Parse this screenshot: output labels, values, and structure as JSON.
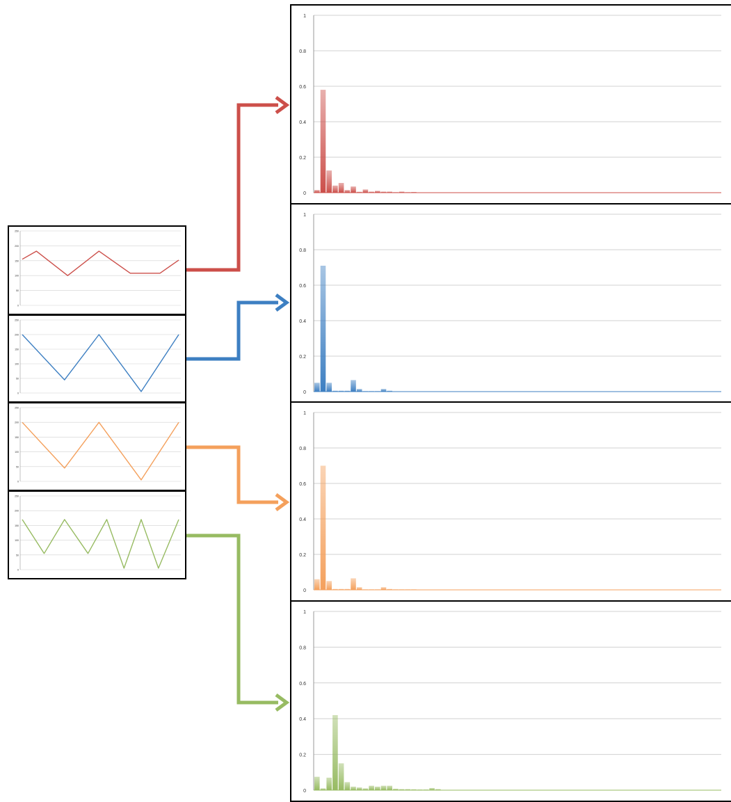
{
  "colors": {
    "red": "#cc4f4a",
    "blue": "#3d7fc2",
    "orange": "#f4a05c",
    "green": "#97bb62",
    "grid": "#d0d0d0",
    "axis": "#999999"
  },
  "chart_data": [
    {
      "type": "line",
      "name": "waveform-red",
      "color": "red",
      "ylim": [
        0,
        250
      ],
      "y_ticks": [
        "0",
        "50",
        "100",
        "150",
        "200",
        "250"
      ],
      "x": [
        0,
        0.09,
        0.29,
        0.49,
        0.69,
        0.88,
        1.0
      ],
      "y": [
        155,
        182,
        100,
        182,
        108,
        108,
        152
      ]
    },
    {
      "type": "line",
      "name": "waveform-blue",
      "color": "blue",
      "ylim": [
        0,
        250
      ],
      "y_ticks": [
        "0",
        "50",
        "100",
        "150",
        "200",
        "250"
      ],
      "x": [
        0,
        0.27,
        0.49,
        0.76,
        1.0
      ],
      "y": [
        200,
        45,
        200,
        5,
        200
      ]
    },
    {
      "type": "line",
      "name": "waveform-orange",
      "color": "orange",
      "ylim": [
        0,
        250
      ],
      "y_ticks": [
        "0",
        "50",
        "100",
        "150",
        "200",
        "250"
      ],
      "x": [
        0,
        0.27,
        0.49,
        0.76,
        1.0
      ],
      "y": [
        200,
        45,
        200,
        5,
        200
      ]
    },
    {
      "type": "line",
      "name": "waveform-green",
      "color": "green",
      "ylim": [
        0,
        250
      ],
      "y_ticks": [
        "0",
        "50",
        "100",
        "150",
        "200",
        "250"
      ],
      "x": [
        0,
        0.14,
        0.27,
        0.42,
        0.54,
        0.65,
        0.76,
        0.87,
        1.0
      ],
      "y": [
        170,
        55,
        170,
        55,
        170,
        5,
        170,
        5,
        170
      ]
    },
    {
      "type": "bar",
      "name": "spectrum-red",
      "color": "red",
      "ylim": [
        0,
        1
      ],
      "y_ticks": [
        "0",
        "0.2",
        "0.4",
        "0.6",
        "0.8",
        "1"
      ],
      "values": [
        0.015,
        0.58,
        0.125,
        0.04,
        0.055,
        0.015,
        0.035,
        0.005,
        0.018,
        0.006,
        0.01,
        0.006,
        0.006,
        0.003,
        0.006,
        0.003,
        0.004,
        0.002,
        0.002,
        0.002
      ]
    },
    {
      "type": "bar",
      "name": "spectrum-blue",
      "color": "blue",
      "ylim": [
        0,
        1
      ],
      "y_ticks": [
        "0",
        "0.2",
        "0.4",
        "0.6",
        "0.8",
        "1"
      ],
      "values": [
        0.05,
        0.71,
        0.05,
        0.005,
        0.005,
        0.005,
        0.065,
        0.015,
        0.003,
        0.003,
        0.003,
        0.015,
        0.005
      ]
    },
    {
      "type": "bar",
      "name": "spectrum-orange",
      "color": "orange",
      "ylim": [
        0,
        1
      ],
      "y_ticks": [
        "0",
        "0.2",
        "0.4",
        "0.6",
        "0.8",
        "1"
      ],
      "values": [
        0.06,
        0.7,
        0.05,
        0.005,
        0.005,
        0.005,
        0.065,
        0.015,
        0.003,
        0.003,
        0.003,
        0.015,
        0.005,
        0.003,
        0.003,
        0.003,
        0.003,
        0.002,
        0.002,
        0.002
      ]
    },
    {
      "type": "bar",
      "name": "spectrum-green",
      "color": "green",
      "ylim": [
        0,
        1
      ],
      "y_ticks": [
        "0",
        "0.2",
        "0.4",
        "0.6",
        "0.8",
        "1"
      ],
      "values": [
        0.075,
        0.01,
        0.07,
        0.42,
        0.15,
        0.045,
        0.02,
        0.015,
        0.01,
        0.025,
        0.02,
        0.025,
        0.025,
        0.008,
        0.006,
        0.006,
        0.005,
        0.004,
        0.004,
        0.012,
        0.006
      ]
    }
  ]
}
